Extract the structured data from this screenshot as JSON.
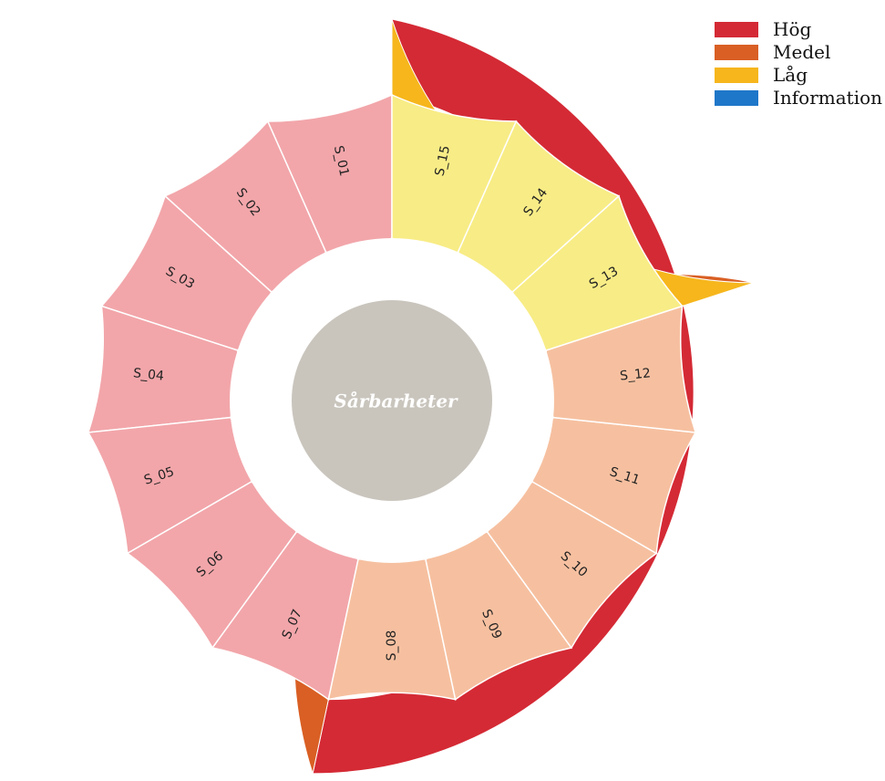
{
  "chart_data": {
    "type": "sunburst",
    "title": "Sårbarheter",
    "levels": [
      {
        "name": "Hög",
        "value": 7,
        "color": "#d42a35"
      },
      {
        "name": "Medel",
        "value": 5,
        "color": "#d95f24"
      },
      {
        "name": "Låg",
        "value": 3,
        "color": "#f6b61c"
      },
      {
        "name": "Information",
        "value": 0,
        "color": "#1f77c9"
      }
    ],
    "segments": [
      {
        "label": "S_01",
        "category": "Hög",
        "value": 1,
        "color": "#f2a6aa"
      },
      {
        "label": "S_02",
        "category": "Hög",
        "value": 1,
        "color": "#f2a6aa"
      },
      {
        "label": "S_03",
        "category": "Hög",
        "value": 1,
        "color": "#f2a6aa"
      },
      {
        "label": "S_04",
        "category": "Hög",
        "value": 1,
        "color": "#f2a6aa"
      },
      {
        "label": "S_05",
        "category": "Hög",
        "value": 1,
        "color": "#f2a6aa"
      },
      {
        "label": "S_06",
        "category": "Hög",
        "value": 1,
        "color": "#f2a6aa"
      },
      {
        "label": "S_07",
        "category": "Hög",
        "value": 1,
        "color": "#f2a6aa"
      },
      {
        "label": "S_08",
        "category": "Medel",
        "value": 1,
        "color": "#f6c0a0"
      },
      {
        "label": "S_09",
        "category": "Medel",
        "value": 1,
        "color": "#f6c0a0"
      },
      {
        "label": "S_10",
        "category": "Medel",
        "value": 1,
        "color": "#f6c0a0"
      },
      {
        "label": "S_11",
        "category": "Medel",
        "value": 1,
        "color": "#f6c0a0"
      },
      {
        "label": "S_12",
        "category": "Medel",
        "value": 1,
        "color": "#f6c0a0"
      },
      {
        "label": "S_13",
        "category": "Låg",
        "value": 1,
        "color": "#f8ec86"
      },
      {
        "label": "S_14",
        "category": "Låg",
        "value": 1,
        "color": "#f8ec86"
      },
      {
        "label": "S_15",
        "category": "Låg",
        "value": 1,
        "color": "#f8ec86"
      }
    ],
    "center_color": "#c9c5bd",
    "legend_position": "top-right"
  }
}
